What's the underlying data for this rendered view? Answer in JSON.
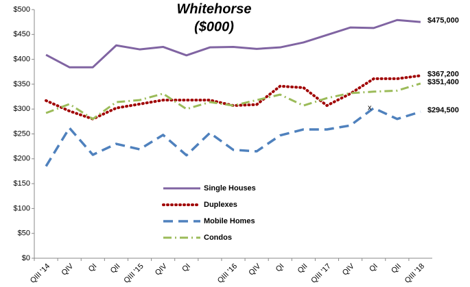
{
  "chart_data": {
    "type": "line",
    "title": "Whitehorse",
    "subtitle": "($000)",
    "categories": [
      "QIII '14",
      "QIV",
      "QI",
      "QII",
      "QIII '15",
      "QIV",
      "QI",
      null,
      "QIII '16",
      "QIV",
      "QI",
      "QII",
      "QIII '17",
      "QIV",
      "QI",
      "QII",
      "QIII '18"
    ],
    "series": [
      {
        "name": "Single Houses",
        "color": "#8064a2",
        "dash": "solid",
        "values": [
          409,
          384,
          384,
          428,
          420,
          425,
          408,
          424,
          425,
          421,
          424,
          434,
          449,
          464,
          463,
          479,
          475
        ],
        "value_labels": [
          null,
          null,
          null,
          null,
          null,
          null,
          null,
          null,
          null,
          null,
          null,
          null,
          null,
          null,
          null,
          null,
          "$475,000"
        ]
      },
      {
        "name": "Duplexes",
        "color": "#a00000",
        "dash": "dot",
        "values": [
          317,
          296,
          280,
          302,
          310,
          318,
          318,
          318,
          307,
          309,
          346,
          343,
          307,
          331,
          361,
          361,
          367.2
        ],
        "value_labels": [
          null,
          null,
          null,
          null,
          null,
          null,
          null,
          null,
          null,
          null,
          null,
          null,
          null,
          null,
          null,
          null,
          "$367,200"
        ]
      },
      {
        "name": "Mobile Homes",
        "color": "#4f81bd",
        "dash": "dash",
        "values": [
          185,
          262,
          208,
          230,
          219,
          248,
          207,
          252,
          218,
          215,
          247,
          259,
          259,
          267,
          302,
          280,
          294.5
        ],
        "value_labels": [
          null,
          null,
          null,
          null,
          null,
          null,
          null,
          null,
          null,
          null,
          null,
          null,
          null,
          null,
          null,
          null,
          "$294,500"
        ]
      },
      {
        "name": "Condos",
        "color": "#9bbb59",
        "dash": "dashdot",
        "values": [
          292,
          310,
          280,
          314,
          318,
          331,
          300,
          314,
          307,
          318,
          329,
          307,
          322,
          332,
          335,
          337,
          351.4
        ],
        "value_labels": [
          null,
          null,
          null,
          null,
          null,
          null,
          null,
          null,
          null,
          null,
          null,
          null,
          null,
          null,
          null,
          null,
          "$351,400"
        ]
      }
    ],
    "annotations": [
      {
        "text": "x",
        "category": 14,
        "value": 302
      }
    ],
    "ylim": [
      0,
      500
    ],
    "yticks": [
      {
        "value": 0,
        "label": "$0"
      },
      {
        "value": 50,
        "label": "$50"
      },
      {
        "value": 100,
        "label": "$100"
      },
      {
        "value": 150,
        "label": "$150"
      },
      {
        "value": 200,
        "label": "$200"
      },
      {
        "value": 250,
        "label": "$250"
      },
      {
        "value": 300,
        "label": "$300"
      },
      {
        "value": 350,
        "label": "$350"
      },
      {
        "value": 400,
        "label": "$400"
      },
      {
        "value": 450,
        "label": "$450"
      },
      {
        "value": 500,
        "label": "$500"
      }
    ],
    "grid": false,
    "legend": "inside-bottom-left"
  }
}
